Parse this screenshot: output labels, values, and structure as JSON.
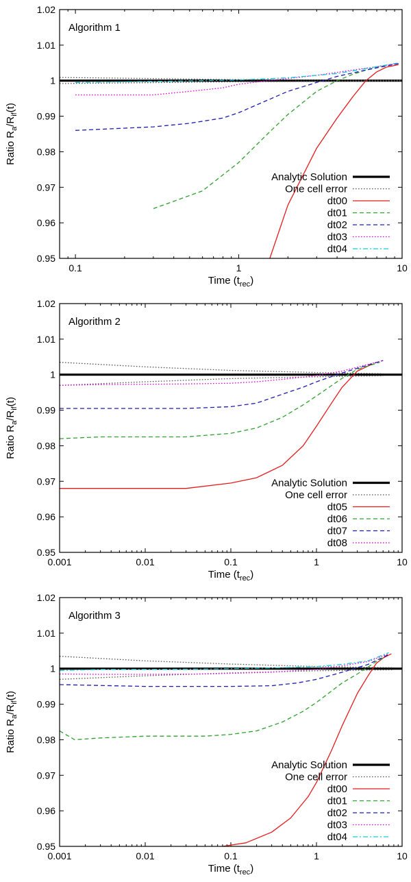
{
  "chart_data": [
    {
      "type": "line",
      "title": "Algorithm 1",
      "xlabel_main": "Time (t",
      "xlabel_sub": "rec",
      "xlabel_end": ")",
      "ylabel_main": "Ratio R",
      "ylabel_sub_a": "a",
      "ylabel_mid": "/R",
      "ylabel_sub_b": "if",
      "ylabel_end": "(t)",
      "xscale": "log",
      "xlim": [
        0.08,
        10
      ],
      "ylim": [
        0.95,
        1.02
      ],
      "xticks": [
        0.1,
        1,
        10
      ],
      "xtick_labels": [
        "0.1",
        "1",
        "10"
      ],
      "yticks": [
        0.95,
        0.96,
        0.97,
        0.98,
        0.99,
        1,
        1.01,
        1.02
      ],
      "ytick_labels": [
        "0.95",
        "0.96",
        "0.97",
        "0.98",
        "0.99",
        "1",
        "1.01",
        "1.02"
      ],
      "legend_position": "bottom-right",
      "series": [
        {
          "name": "Analytic Solution",
          "color": "#000000",
          "style": "thick",
          "x": [
            0.08,
            10
          ],
          "y": [
            1.0,
            1.0
          ]
        },
        {
          "name": "One cell error",
          "color": "#555555",
          "style": "dotted",
          "x": [
            0.08,
            1,
            10
          ],
          "y": [
            1.0009,
            1.0003,
            1.0001
          ]
        },
        {
          "name": "One cell error (lower)",
          "color": "#555555",
          "style": "dotted",
          "legend": false,
          "x": [
            0.08,
            1,
            10
          ],
          "y": [
            0.9992,
            0.9997,
            0.9999
          ]
        },
        {
          "name": "dt00",
          "color": "#e41a1c",
          "style": "solid",
          "x": [
            1.55,
            2,
            3,
            4,
            5,
            6,
            7,
            8,
            9.5
          ],
          "y": [
            0.95,
            0.965,
            0.981,
            0.9895,
            0.9955,
            1.0,
            1.0025,
            1.0038,
            1.0045
          ]
        },
        {
          "name": "dt01",
          "color": "#2ca02c",
          "style": "dashed",
          "x": [
            0.3,
            0.6,
            1,
            1.5,
            2,
            3,
            4,
            5,
            6,
            7,
            8,
            9.5
          ],
          "y": [
            0.964,
            0.969,
            0.977,
            0.985,
            0.9905,
            0.997,
            1.0,
            1.0018,
            1.003,
            1.0038,
            1.0043,
            1.0048
          ]
        },
        {
          "name": "dt02",
          "color": "#1c1cb4",
          "style": "dashed",
          "x": [
            0.1,
            0.3,
            0.5,
            0.8,
            1,
            1.5,
            2,
            3,
            4,
            6,
            9.5
          ],
          "y": [
            0.986,
            0.987,
            0.988,
            0.9895,
            0.991,
            0.9945,
            0.997,
            0.9995,
            1.0012,
            1.003,
            1.0048
          ]
        },
        {
          "name": "dt03",
          "color": "#dd00dd",
          "style": "dotted",
          "x": [
            0.1,
            0.2,
            0.3,
            0.5,
            0.8,
            1,
            1.5,
            2,
            3,
            5,
            9.5
          ],
          "y": [
            0.996,
            0.996,
            0.996,
            0.997,
            0.998,
            0.999,
            1.0,
            1.0006,
            1.0015,
            1.003,
            1.0048
          ]
        },
        {
          "name": "dt04",
          "color": "#17c6d6",
          "style": "dashdot",
          "x": [
            0.1,
            0.3,
            0.6,
            1,
            2,
            4,
            9.5
          ],
          "y": [
            0.9995,
            0.9998,
            1.0,
            1.0002,
            1.0008,
            1.002,
            1.005
          ]
        }
      ]
    },
    {
      "type": "line",
      "title": "Algorithm 2",
      "xlabel_main": "Time (t",
      "xlabel_sub": "rec",
      "xlabel_end": ")",
      "ylabel_main": "Ratio R",
      "ylabel_sub_a": "a",
      "ylabel_mid": "/R",
      "ylabel_sub_b": "if",
      "ylabel_end": "(t)",
      "xscale": "log",
      "xlim": [
        0.001,
        10
      ],
      "ylim": [
        0.95,
        1.02
      ],
      "xticks": [
        0.001,
        0.01,
        0.1,
        1,
        10
      ],
      "xtick_labels": [
        "0.001",
        "0.01",
        "0.1",
        "1",
        "10"
      ],
      "yticks": [
        0.95,
        0.96,
        0.97,
        0.98,
        0.99,
        1,
        1.01,
        1.02
      ],
      "ytick_labels": [
        "0.95",
        "0.96",
        "0.97",
        "0.98",
        "0.99",
        "1",
        "1.01",
        "1.02"
      ],
      "legend_position": "bottom-right",
      "series": [
        {
          "name": "Analytic Solution",
          "color": "#000000",
          "style": "thick",
          "x": [
            0.001,
            10
          ],
          "y": [
            1.0,
            1.0
          ]
        },
        {
          "name": "One cell error",
          "color": "#555555",
          "style": "dotted",
          "x": [
            0.001,
            0.01,
            0.1,
            1,
            6
          ],
          "y": [
            1.0035,
            1.0022,
            1.0012,
            1.0006,
            1.0003
          ]
        },
        {
          "name": "One cell error (lower)",
          "color": "#555555",
          "style": "dotted",
          "legend": false,
          "x": [
            0.001,
            0.01,
            0.1,
            1,
            6
          ],
          "y": [
            0.997,
            0.998,
            0.9989,
            0.9994,
            0.9997
          ]
        },
        {
          "name": "dt05",
          "color": "#e41a1c",
          "style": "solid",
          "x": [
            0.001,
            0.003,
            0.01,
            0.03,
            0.1,
            0.2,
            0.4,
            0.7,
            1,
            1.5,
            2,
            3,
            4.5
          ],
          "y": [
            0.968,
            0.968,
            0.968,
            0.968,
            0.9695,
            0.971,
            0.9745,
            0.98,
            0.9855,
            0.992,
            0.9965,
            1.001,
            1.003
          ]
        },
        {
          "name": "dt06",
          "color": "#2ca02c",
          "style": "dashed",
          "x": [
            0.001,
            0.003,
            0.01,
            0.03,
            0.1,
            0.2,
            0.4,
            0.7,
            1,
            2,
            3,
            5.5
          ],
          "y": [
            0.982,
            0.9825,
            0.9825,
            0.9825,
            0.9835,
            0.985,
            0.988,
            0.9915,
            0.994,
            0.999,
            1.0015,
            1.0035
          ]
        },
        {
          "name": "dt07",
          "color": "#1c1cb4",
          "style": "dashed",
          "x": [
            0.001,
            0.003,
            0.01,
            0.03,
            0.1,
            0.2,
            0.4,
            0.7,
            1,
            2,
            6
          ],
          "y": [
            0.9905,
            0.9905,
            0.9905,
            0.9905,
            0.991,
            0.992,
            0.9945,
            0.9965,
            0.998,
            1.0005,
            1.004
          ]
        },
        {
          "name": "dt08",
          "color": "#dd00dd",
          "style": "dotted",
          "x": [
            0.001,
            0.003,
            0.01,
            0.03,
            0.1,
            0.2,
            0.4,
            0.7,
            1,
            2,
            6
          ],
          "y": [
            0.997,
            0.9972,
            0.9973,
            0.9974,
            0.9976,
            0.998,
            0.9987,
            0.9993,
            0.9998,
            1.001,
            1.004
          ]
        }
      ]
    },
    {
      "type": "line",
      "title": "Algorithm 3",
      "xlabel_main": "Time (t",
      "xlabel_sub": "rec",
      "xlabel_end": ")",
      "ylabel_main": "Ratio R",
      "ylabel_sub_a": "a",
      "ylabel_mid": "/R",
      "ylabel_sub_b": "if",
      "ylabel_end": "(t)",
      "xscale": "log",
      "xlim": [
        0.001,
        10
      ],
      "ylim": [
        0.95,
        1.02
      ],
      "xticks": [
        0.001,
        0.01,
        0.1,
        1,
        10
      ],
      "xtick_labels": [
        "0.001",
        "0.01",
        "0.1",
        "1",
        "10"
      ],
      "yticks": [
        0.95,
        0.96,
        0.97,
        0.98,
        0.99,
        1,
        1.01,
        1.02
      ],
      "ytick_labels": [
        "0.95",
        "0.96",
        "0.97",
        "0.98",
        "0.99",
        "1",
        "1.01",
        "1.02"
      ],
      "legend_position": "bottom-right",
      "series": [
        {
          "name": "Analytic Solution",
          "color": "#000000",
          "style": "thick",
          "x": [
            0.001,
            10
          ],
          "y": [
            1.0,
            1.0
          ]
        },
        {
          "name": "One cell error",
          "color": "#555555",
          "style": "dotted",
          "x": [
            0.001,
            0.01,
            0.1,
            1,
            8
          ],
          "y": [
            1.0035,
            1.0022,
            1.0013,
            1.0006,
            1.0003
          ]
        },
        {
          "name": "One cell error (lower)",
          "color": "#555555",
          "style": "dotted",
          "legend": false,
          "x": [
            0.001,
            0.01,
            0.1,
            1,
            8
          ],
          "y": [
            0.997,
            0.998,
            0.9988,
            0.9994,
            0.9997
          ]
        },
        {
          "name": "dt00",
          "color": "#e41a1c",
          "style": "solid",
          "x": [
            0.08,
            0.15,
            0.3,
            0.5,
            0.8,
            1,
            1.5,
            2,
            3,
            4,
            5,
            6,
            7.5
          ],
          "y": [
            0.95,
            0.951,
            0.954,
            0.958,
            0.964,
            0.968,
            0.977,
            0.984,
            0.993,
            0.998,
            1.0015,
            1.003,
            1.0042
          ]
        },
        {
          "name": "dt01",
          "color": "#2ca02c",
          "style": "dashed",
          "x": [
            0.001,
            0.0015,
            0.003,
            0.01,
            0.05,
            0.1,
            0.2,
            0.4,
            0.7,
            1,
            2,
            3,
            5,
            6.5
          ],
          "y": [
            0.9825,
            0.98,
            0.9805,
            0.981,
            0.981,
            0.9815,
            0.9825,
            0.985,
            0.988,
            0.9905,
            0.996,
            0.9985,
            1.002,
            1.0035
          ]
        },
        {
          "name": "dt02",
          "color": "#1c1cb4",
          "style": "dashed",
          "x": [
            0.001,
            0.01,
            0.1,
            0.3,
            0.6,
            1,
            2,
            4,
            7
          ],
          "y": [
            0.9955,
            0.995,
            0.995,
            0.9952,
            0.996,
            0.997,
            0.999,
            1.0012,
            1.004
          ]
        },
        {
          "name": "dt03",
          "color": "#dd00dd",
          "style": "dotted",
          "x": [
            0.001,
            0.003,
            0.01,
            0.05,
            0.1,
            0.3,
            0.6,
            1,
            2,
            4,
            7
          ],
          "y": [
            0.9985,
            0.9984,
            0.9984,
            0.9985,
            0.9987,
            0.999,
            0.9995,
            0.9998,
            1.0008,
            1.002,
            1.0042
          ]
        },
        {
          "name": "dt04",
          "color": "#17c6d6",
          "style": "dashdot",
          "x": [
            0.001,
            0.003,
            0.01,
            0.05,
            0.1,
            0.3,
            1,
            2,
            4,
            7
          ],
          "y": [
            0.9995,
            0.9998,
            0.9998,
            0.9999,
            1.0,
            1.0002,
            1.0006,
            1.0012,
            1.0022,
            1.0045
          ]
        }
      ]
    }
  ]
}
